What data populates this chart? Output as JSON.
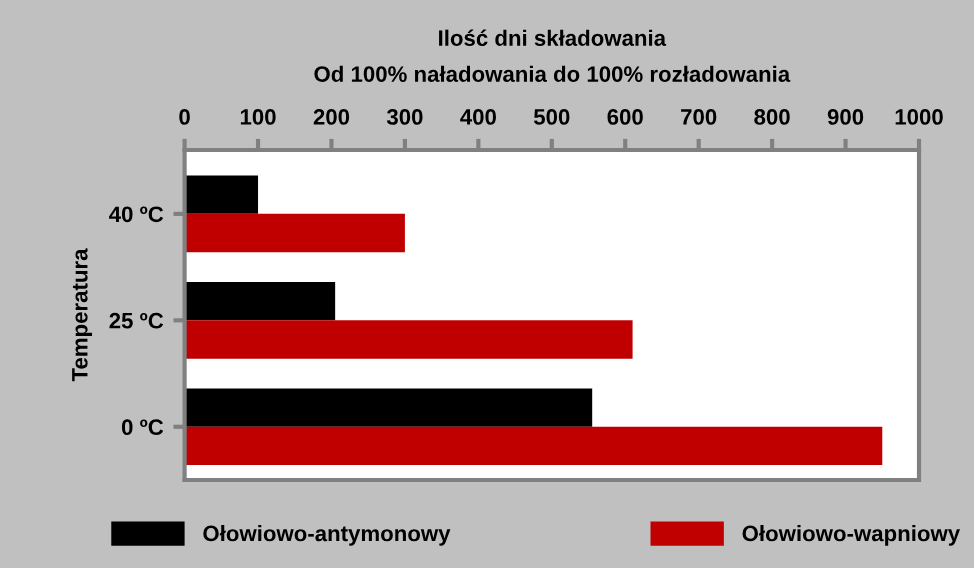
{
  "chart_data": {
    "type": "bar",
    "orientation": "horizontal",
    "title": "Ilość dni składowania",
    "subtitle": "Od 100% naładowania do 100% rozładowania",
    "ylabel": "Temperatura",
    "categories": [
      "40 ºC",
      "25 ºC",
      "0 ºC"
    ],
    "series": [
      {
        "name": "Ołowiowo-antymonowy",
        "color": "#000000",
        "axis": "x2",
        "values": [
          100,
          205,
          555
        ]
      },
      {
        "name": "Ołowiowo-wapniowy",
        "color": "#c00000",
        "axis": "x2",
        "values": [
          300,
          610,
          950
        ]
      }
    ],
    "x2lim": [
      0,
      1000
    ],
    "x2ticks": [
      0,
      100,
      200,
      300,
      400,
      500,
      600,
      700,
      800,
      900,
      1000
    ],
    "grid": false,
    "legend": "bottom"
  }
}
